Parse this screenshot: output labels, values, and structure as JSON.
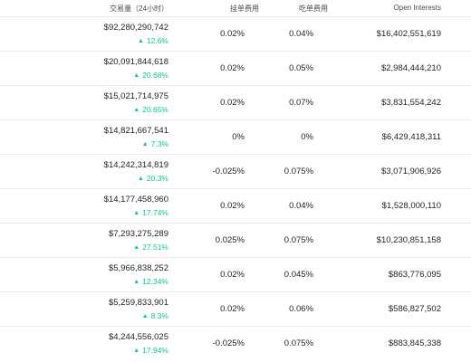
{
  "header": {
    "volume": "交易量（24小时）",
    "maker_fee": "挂单费用",
    "taker_fee": "吃单费用",
    "open_interest": "Open Interests"
  },
  "rows": [
    {
      "volume": "$92,280,290,742",
      "change": "12.6%",
      "maker": "0.02%",
      "taker": "0.04%",
      "oi": "$16,402,551,619"
    },
    {
      "volume": "$20,091,844,618",
      "change": "20.68%",
      "maker": "0.02%",
      "taker": "0.05%",
      "oi": "$2,984,444,210"
    },
    {
      "volume": "$15,021,714,975",
      "change": "20.65%",
      "maker": "0.02%",
      "taker": "0.07%",
      "oi": "$3,831,554,242"
    },
    {
      "volume": "$14,821,667,541",
      "change": "7.3%",
      "maker": "0%",
      "taker": "0%",
      "oi": "$6,429,418,311"
    },
    {
      "volume": "$14,242,314,819",
      "change": "20.3%",
      "maker": "-0.025%",
      "taker": "0.075%",
      "oi": "$3,071,906,926"
    },
    {
      "volume": "$14,177,458,960",
      "change": "17.74%",
      "maker": "0.02%",
      "taker": "0.04%",
      "oi": "$1,528,000,110"
    },
    {
      "volume": "$7,293,275,289",
      "change": "27.51%",
      "maker": "0.025%",
      "taker": "0.075%",
      "oi": "$10,230,851,158"
    },
    {
      "volume": "$5,966,838,252",
      "change": "12.34%",
      "maker": "0.02%",
      "taker": "0.045%",
      "oi": "$863,776,095"
    },
    {
      "volume": "$5,259,833,901",
      "change": "8.3%",
      "maker": "0.02%",
      "taker": "0.06%",
      "oi": "$586,827,502"
    },
    {
      "volume": "$4,244,556,025",
      "change": "17.94%",
      "maker": "-0.025%",
      "taker": "0.075%",
      "oi": "$883,845,338"
    }
  ],
  "colors": {
    "positive": "#0ecb81",
    "text": "#1e2026",
    "divider": "#eaecef"
  },
  "icons": {
    "change_up": "triangle-up-icon"
  }
}
